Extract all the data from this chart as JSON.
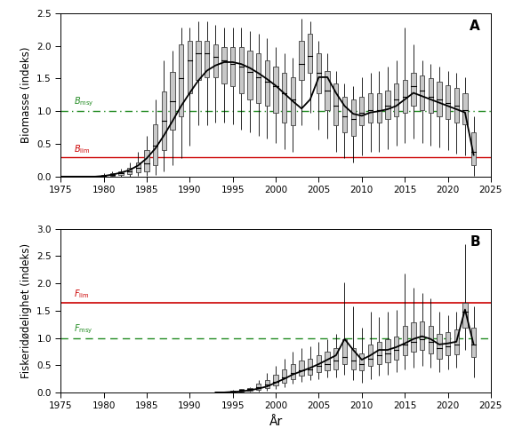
{
  "years_A": [
    1975,
    1976,
    1977,
    1978,
    1979,
    1980,
    1981,
    1982,
    1983,
    1984,
    1985,
    1986,
    1987,
    1988,
    1989,
    1990,
    1991,
    1992,
    1993,
    1994,
    1995,
    1996,
    1997,
    1998,
    1999,
    2000,
    2001,
    2002,
    2003,
    2004,
    2005,
    2006,
    2007,
    2008,
    2009,
    2010,
    2011,
    2012,
    2013,
    2014,
    2015,
    2016,
    2017,
    2018,
    2019,
    2020,
    2021,
    2022,
    2023
  ],
  "median_A": [
    0.0,
    0.0,
    0.0,
    0.0,
    0.0,
    0.01,
    0.03,
    0.05,
    0.08,
    0.13,
    0.2,
    0.48,
    0.85,
    1.15,
    1.5,
    1.78,
    1.88,
    1.88,
    1.83,
    1.78,
    1.72,
    1.68,
    1.6,
    1.52,
    1.45,
    1.38,
    1.28,
    1.18,
    1.72,
    1.85,
    1.58,
    1.32,
    1.08,
    0.92,
    0.88,
    0.97,
    1.02,
    1.02,
    1.08,
    1.18,
    1.22,
    1.38,
    1.32,
    1.22,
    1.18,
    1.12,
    1.08,
    1.02,
    0.38
  ],
  "q25_A": [
    0.0,
    0.0,
    0.0,
    0.0,
    0.0,
    0.0,
    0.01,
    0.02,
    0.04,
    0.06,
    0.08,
    0.18,
    0.4,
    0.72,
    0.92,
    1.28,
    1.48,
    1.52,
    1.52,
    1.42,
    1.38,
    1.28,
    1.18,
    1.12,
    1.08,
    0.98,
    0.82,
    0.78,
    1.48,
    1.58,
    1.28,
    1.02,
    0.78,
    0.68,
    0.62,
    0.78,
    0.82,
    0.82,
    0.88,
    0.92,
    0.98,
    1.08,
    1.02,
    0.98,
    0.92,
    0.88,
    0.82,
    0.8,
    0.18
  ],
  "q75_A": [
    0.0,
    0.0,
    0.0,
    0.0,
    0.0,
    0.02,
    0.05,
    0.08,
    0.13,
    0.22,
    0.4,
    0.8,
    1.3,
    1.6,
    2.02,
    2.08,
    2.08,
    2.08,
    2.02,
    1.98,
    1.98,
    1.98,
    1.92,
    1.88,
    1.78,
    1.68,
    1.58,
    1.52,
    2.08,
    2.18,
    1.88,
    1.62,
    1.42,
    1.22,
    1.18,
    1.22,
    1.28,
    1.28,
    1.32,
    1.42,
    1.48,
    1.58,
    1.55,
    1.5,
    1.45,
    1.4,
    1.35,
    1.28,
    0.68
  ],
  "ci_lo_A": [
    0.0,
    0.0,
    0.0,
    0.0,
    0.0,
    0.0,
    0.0,
    0.0,
    0.0,
    0.01,
    0.01,
    0.03,
    0.08,
    0.18,
    0.28,
    0.48,
    0.78,
    0.78,
    0.82,
    0.82,
    0.8,
    0.72,
    0.68,
    0.62,
    0.58,
    0.52,
    0.42,
    0.38,
    0.78,
    0.98,
    0.72,
    0.58,
    0.38,
    0.28,
    0.22,
    0.32,
    0.38,
    0.38,
    0.42,
    0.48,
    0.52,
    0.58,
    0.52,
    0.48,
    0.45,
    0.4,
    0.35,
    0.32,
    0.01
  ],
  "ci_hi_A": [
    0.0,
    0.0,
    0.0,
    0.0,
    0.0,
    0.05,
    0.08,
    0.12,
    0.22,
    0.38,
    0.62,
    1.18,
    1.78,
    1.92,
    2.28,
    2.28,
    2.38,
    2.38,
    2.32,
    2.28,
    2.28,
    2.28,
    2.22,
    2.18,
    2.12,
    1.98,
    1.88,
    1.82,
    2.42,
    2.38,
    2.08,
    1.88,
    1.62,
    1.42,
    1.38,
    1.52,
    1.58,
    1.62,
    1.68,
    1.78,
    2.28,
    2.02,
    1.78,
    1.72,
    1.68,
    1.62,
    1.58,
    1.52,
    0.92
  ],
  "smooth_A": [
    0.0,
    0.0,
    0.0,
    0.0,
    0.0,
    0.01,
    0.03,
    0.06,
    0.1,
    0.17,
    0.28,
    0.43,
    0.63,
    0.85,
    1.08,
    1.28,
    1.47,
    1.62,
    1.7,
    1.75,
    1.75,
    1.72,
    1.66,
    1.58,
    1.49,
    1.39,
    1.27,
    1.15,
    1.04,
    1.18,
    1.52,
    1.52,
    1.28,
    1.08,
    0.96,
    0.93,
    0.98,
    1.0,
    1.03,
    1.08,
    1.18,
    1.28,
    1.23,
    1.18,
    1.13,
    1.08,
    1.03,
    0.98,
    0.33
  ],
  "years_B": [
    1993,
    1994,
    1995,
    1996,
    1997,
    1998,
    1999,
    2000,
    2001,
    2002,
    2003,
    2004,
    2005,
    2006,
    2007,
    2008,
    2009,
    2010,
    2011,
    2012,
    2013,
    2014,
    2015,
    2016,
    2017,
    2018,
    2019,
    2020,
    2021,
    2022,
    2023
  ],
  "median_B": [
    0.0,
    0.0,
    0.02,
    0.04,
    0.06,
    0.1,
    0.15,
    0.2,
    0.28,
    0.35,
    0.4,
    0.42,
    0.48,
    0.52,
    0.58,
    0.65,
    0.58,
    0.52,
    0.62,
    0.68,
    0.72,
    0.78,
    0.88,
    0.92,
    0.98,
    0.92,
    0.82,
    0.85,
    0.88,
    1.48,
    0.88
  ],
  "q25_B": [
    0.0,
    0.0,
    0.01,
    0.02,
    0.03,
    0.05,
    0.08,
    0.13,
    0.18,
    0.25,
    0.3,
    0.33,
    0.38,
    0.4,
    0.43,
    0.52,
    0.42,
    0.4,
    0.48,
    0.52,
    0.55,
    0.6,
    0.68,
    0.75,
    0.78,
    0.72,
    0.62,
    0.68,
    0.7,
    1.18,
    0.65
  ],
  "q75_B": [
    0.0,
    0.0,
    0.03,
    0.06,
    0.08,
    0.16,
    0.22,
    0.32,
    0.42,
    0.52,
    0.58,
    0.62,
    0.68,
    0.75,
    0.82,
    0.98,
    0.82,
    0.72,
    0.88,
    0.92,
    0.98,
    1.02,
    1.22,
    1.28,
    1.3,
    1.22,
    1.08,
    1.1,
    1.15,
    1.65,
    1.18
  ],
  "ci_lo_B": [
    0.0,
    0.0,
    0.0,
    0.01,
    0.01,
    0.02,
    0.03,
    0.07,
    0.1,
    0.16,
    0.2,
    0.22,
    0.25,
    0.28,
    0.28,
    0.32,
    0.22,
    0.18,
    0.25,
    0.3,
    0.32,
    0.38,
    0.42,
    0.45,
    0.48,
    0.45,
    0.38,
    0.42,
    0.45,
    0.78,
    0.28
  ],
  "ci_hi_B": [
    0.0,
    0.0,
    0.04,
    0.07,
    0.1,
    0.22,
    0.35,
    0.48,
    0.62,
    0.75,
    0.82,
    0.85,
    0.92,
    0.98,
    1.08,
    2.02,
    1.58,
    1.18,
    1.48,
    1.38,
    1.48,
    1.52,
    2.18,
    1.92,
    1.82,
    1.72,
    1.48,
    1.42,
    1.48,
    2.72,
    1.58
  ],
  "smooth_B": [
    0.0,
    0.0,
    0.01,
    0.02,
    0.04,
    0.07,
    0.11,
    0.18,
    0.25,
    0.33,
    0.39,
    0.45,
    0.52,
    0.6,
    0.68,
    0.98,
    0.78,
    0.6,
    0.68,
    0.78,
    0.78,
    0.83,
    0.9,
    0.98,
    1.03,
    0.98,
    0.88,
    0.9,
    0.93,
    1.52,
    0.88
  ],
  "bmsy": 1.0,
  "blim": 0.3,
  "fmsy": 1.0,
  "flim": 1.65,
  "box_color": "#C8C8C8",
  "box_edge_color": "#404040",
  "line_color": "black",
  "bmsy_color": "#228B22",
  "blim_color": "#CC0000",
  "fmsy_color": "#228B22",
  "flim_color": "#CC0000",
  "ylabel_A": "Biomasse (indeks)",
  "ylabel_B": "Fiskeridødelighet (indeks)",
  "xlabel": "År",
  "label_A": "A",
  "label_B": "B",
  "ylim_A": [
    0.0,
    2.5
  ],
  "ylim_B": [
    0.0,
    3.0
  ],
  "xlim": [
    1975,
    2025
  ],
  "yticks_A": [
    0.0,
    0.5,
    1.0,
    1.5,
    2.0,
    2.5
  ],
  "yticks_B": [
    0.0,
    0.5,
    1.0,
    1.5,
    2.0,
    2.5,
    3.0
  ],
  "xticks": [
    1975,
    1980,
    1985,
    1990,
    1995,
    2000,
    2005,
    2010,
    2015,
    2020,
    2025
  ]
}
